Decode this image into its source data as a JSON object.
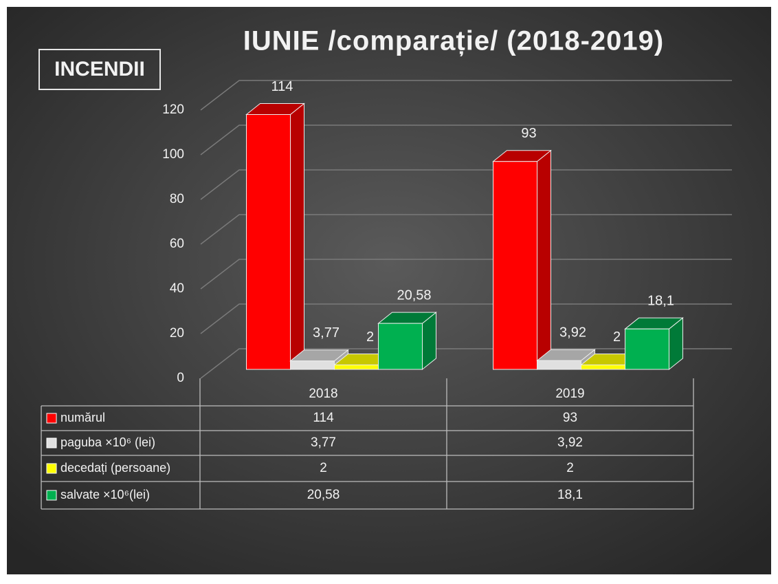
{
  "chart_data": {
    "type": "bar3d",
    "title": "IUNIE /comparație/ (2018-2019)",
    "label_box": "INCENDII",
    "categories": [
      "2018",
      "2019"
    ],
    "series": [
      {
        "name": "numărul",
        "color": "#ff0000",
        "side": "#b80000",
        "values": [
          114,
          93
        ],
        "value_labels": [
          "114",
          "93"
        ]
      },
      {
        "name": "paguba ×10⁶ (lei)",
        "color": "#e0e0e0",
        "side": "#a6a6a6",
        "values": [
          3.77,
          3.92
        ],
        "value_labels": [
          "3,77",
          "3,92"
        ]
      },
      {
        "name": "decedați (persoane)",
        "color": "#ffff00",
        "side": "#c8c800",
        "values": [
          2,
          2
        ],
        "value_labels": [
          "2",
          "2"
        ]
      },
      {
        "name": "salvate ×10⁶(lei)",
        "color": "#00b050",
        "side": "#007a38",
        "values": [
          20.58,
          18.1
        ],
        "value_labels": [
          "20,58",
          "18,1"
        ]
      }
    ],
    "ylim": [
      0,
      120
    ],
    "yticks": [
      0,
      20,
      40,
      60,
      80,
      100,
      120
    ],
    "grid": true,
    "data_table": true
  }
}
